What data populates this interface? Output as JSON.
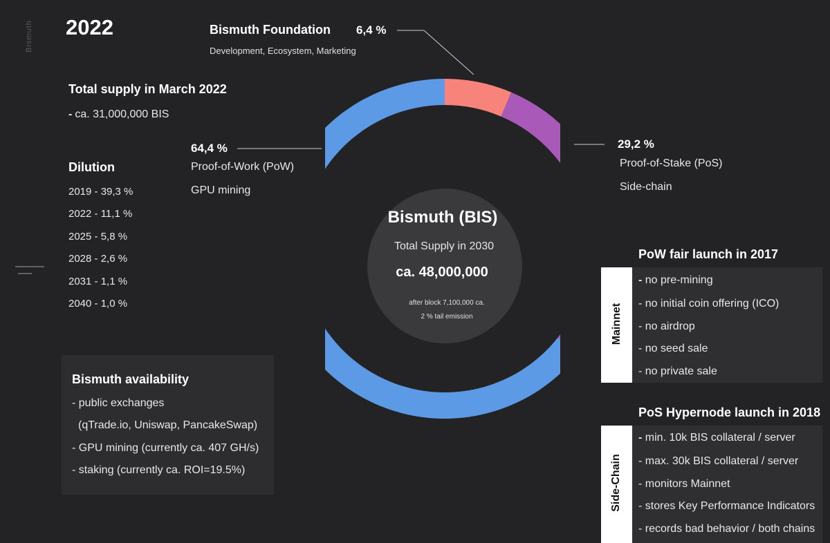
{
  "brand": "Bismuth",
  "year": "2022",
  "supply": {
    "title": "Total supply in March 2022",
    "dash": "-",
    "value": "ca. 31,000,000 BIS"
  },
  "dilution": {
    "title": "Dilution",
    "items": [
      "2019 - 39,3 %",
      "2022 - 11,1 %",
      "2025 - 5,8 %",
      "2028 - 2,6 %",
      "2031 - 1,1 %",
      "2040 - 1,0 %"
    ]
  },
  "callouts": {
    "pow": {
      "pct": "64,4 %",
      "line1": "Proof-of-Work (PoW)",
      "line2": "GPU mining"
    },
    "pos": {
      "pct": "29,2 %",
      "line1": "Proof-of-Stake (PoS)",
      "line2": "Side-chain"
    },
    "foundation": {
      "title": "Bismuth Foundation",
      "pct": "6,4 %",
      "sub": "Development, Ecosystem, Marketing"
    }
  },
  "center": {
    "title": "Bismuth (BIS)",
    "subtitle": "Total Supply in 2030",
    "value": "ca. 48,000,000",
    "note1": "after block 7,100,000 ca.",
    "note2": "2 % tail emission"
  },
  "availability": {
    "title": "Bismuth availability",
    "lines": [
      "- public exchanges",
      "(qTrade.io, Uniswap, PancakeSwap)",
      "- GPU mining (currently ca. 407 GH/s)",
      "- staking (currently ca. ROI=19.5%)"
    ]
  },
  "mainnet": {
    "title": "PoW fair launch in 2017",
    "tab": "Mainnet",
    "dash": "-",
    "items": [
      " no pre-mining",
      "- no initial coin offering (ICO)",
      "- no airdrop",
      "- no seed sale",
      "- no private sale"
    ]
  },
  "sidechain": {
    "title": "PoS Hypernode launch in 2018",
    "tab": "Side-Chain",
    "dash": "-",
    "items": [
      " min. 10k BIS collateral / server",
      "- max. 30k BIS collateral / server",
      "- monitors Mainnet",
      "- stores Key Performance Indicators",
      "- records bad behavior / both chains"
    ]
  },
  "chart_data": {
    "type": "pie",
    "variant": "donut",
    "categories": [
      "Bismuth Foundation",
      "Proof-of-Stake (PoS)",
      "Proof-of-Work (PoW)"
    ],
    "values": [
      6.4,
      29.2,
      64.4
    ],
    "colors": [
      "#f8837a",
      "#a95ab9",
      "#5c9ae6"
    ],
    "center_color": "#3a3a3c",
    "start": "12 o'clock, clockwise"
  }
}
